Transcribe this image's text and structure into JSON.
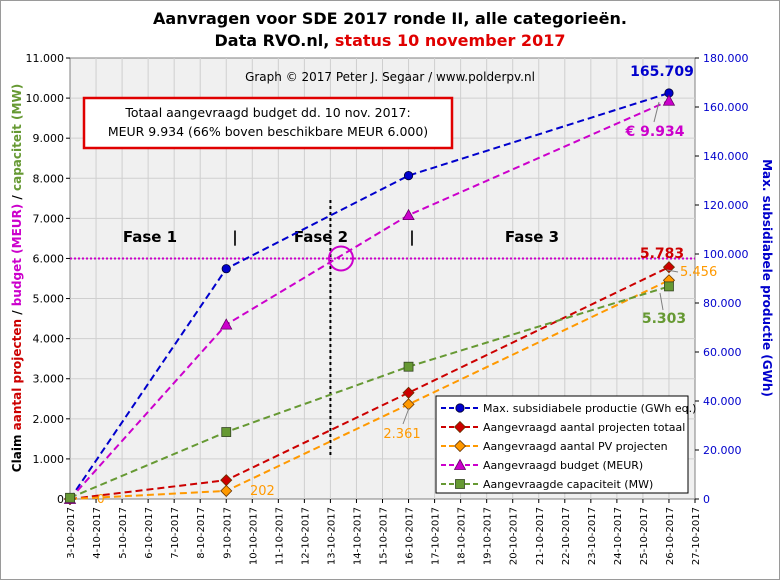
{
  "title_line1": "Aanvragen voor SDE 2017 ronde II, alle categorieën.",
  "title_line2_black": "Data RVO.nl, ",
  "title_line2_red": "status 10 november 2017",
  "credit": "Graph  © 2017  Peter J. Segaar / www.polderpv.nl",
  "box": {
    "line1": "Totaal aangevraagd budget dd. 10 nov. 2017:",
    "line2": "MEUR 9.934 (66% boven beschikbare MEUR 6.000)"
  },
  "phases": [
    "Fase 1",
    "|",
    "Fase 2",
    "|",
    "Fase 3"
  ],
  "left_axis_label_parts": [
    {
      "text": "Claim ",
      "color": "#000000"
    },
    {
      "text": "aantal projecten",
      "color": "#cc0000"
    },
    {
      "text": " / ",
      "color": "#000000"
    },
    {
      "text": "budget (MEUR)",
      "color": "#cc00cc"
    },
    {
      "text": " / ",
      "color": "#000000"
    },
    {
      "text": "capaciteit (MW)",
      "color": "#669933"
    }
  ],
  "right_axis_label": "Max. subsidiabele productie (GWh)",
  "chart_data": {
    "type": "line",
    "x_categories": [
      "3-10-2017",
      "4-10-2017",
      "5-10-2017",
      "6-10-2017",
      "7-10-2017",
      "8-10-2017",
      "9-10-2017",
      "10-10-2017",
      "11-10-2017",
      "12-10-2017",
      "13-10-2017",
      "14-10-2017",
      "15-10-2017",
      "16-10-2017",
      "17-10-2017",
      "18-10-2017",
      "19-10-2017",
      "20-10-2017",
      "21-10-2017",
      "22-10-2017",
      "23-10-2017",
      "24-10-2017",
      "25-10-2017",
      "26-10-2017",
      "27-10-2017"
    ],
    "left_axis": {
      "range": [
        0,
        11000
      ],
      "ticks": [
        0,
        1000,
        2000,
        3000,
        4000,
        5000,
        6000,
        7000,
        8000,
        9000,
        10000,
        11000
      ],
      "tick_labels": [
        "0",
        "1.000",
        "2.000",
        "3.000",
        "4.000",
        "5.000",
        "6.000",
        "7.000",
        "8.000",
        "9.000",
        "10.000",
        "11.000"
      ]
    },
    "right_axis": {
      "range": [
        0,
        180000
      ],
      "ticks": [
        0,
        20000,
        40000,
        60000,
        80000,
        100000,
        120000,
        140000,
        160000,
        180000
      ],
      "tick_labels": [
        "0",
        "20.000",
        "40.000",
        "60.000",
        "80.000",
        "100.000",
        "120.000",
        "140.000",
        "160.000",
        "180.000"
      ]
    },
    "grid": true,
    "reference_line": {
      "axis": "left",
      "value": 6000,
      "color": "#cc00cc"
    },
    "divider_date": "13-10-2017",
    "legend_position": "bottom-right",
    "series": [
      {
        "name": "Max. subsidiabele productie (GWh eq.)",
        "axis": "right",
        "color": "#0000cc",
        "marker": "circle",
        "points": [
          [
            "3-10-2017",
            0
          ],
          [
            "9-10-2017",
            94000
          ],
          [
            "16-10-2017",
            132000
          ],
          [
            "26-10-2017",
            165709
          ]
        ]
      },
      {
        "name": "Aangevraagd aantal projecten totaal",
        "axis": "left",
        "color": "#cc0000",
        "marker": "diamond",
        "points": [
          [
            "3-10-2017",
            0
          ],
          [
            "9-10-2017",
            470
          ],
          [
            "16-10-2017",
            2650
          ],
          [
            "26-10-2017",
            5783
          ]
        ]
      },
      {
        "name": "Aangevraagd aantal PV projecten",
        "axis": "left",
        "color": "#ff9900",
        "marker": "diamond",
        "points": [
          [
            "3-10-2017",
            0
          ],
          [
            "9-10-2017",
            202
          ],
          [
            "16-10-2017",
            2361
          ],
          [
            "26-10-2017",
            5456
          ]
        ]
      },
      {
        "name": "Aangevraagd budget (MEUR)",
        "axis": "left",
        "color": "#cc00cc",
        "marker": "triangle",
        "points": [
          [
            "3-10-2017",
            0
          ],
          [
            "9-10-2017",
            4350
          ],
          [
            "16-10-2017",
            7080
          ],
          [
            "26-10-2017",
            9934
          ]
        ]
      },
      {
        "name": "Aangevraagde capaciteit (MW)",
        "axis": "left",
        "color": "#669933",
        "marker": "square",
        "points": [
          [
            "3-10-2017",
            30
          ],
          [
            "9-10-2017",
            1670
          ],
          [
            "16-10-2017",
            3300
          ],
          [
            "26-10-2017",
            5303
          ]
        ]
      }
    ],
    "annotations": [
      {
        "text": "165.709",
        "color": "#0000cc"
      },
      {
        "text": "€ 9.934",
        "color": "#cc00cc"
      },
      {
        "text": "5.783",
        "color": "#cc0000"
      },
      {
        "text": "5.456",
        "color": "#ff9900"
      },
      {
        "text": "5.303",
        "color": "#669933"
      },
      {
        "text": "2.361",
        "color": "#ff9900"
      },
      {
        "text": "202",
        "color": "#ff9900"
      },
      {
        "text": "0",
        "color": "#ff9900"
      }
    ]
  }
}
